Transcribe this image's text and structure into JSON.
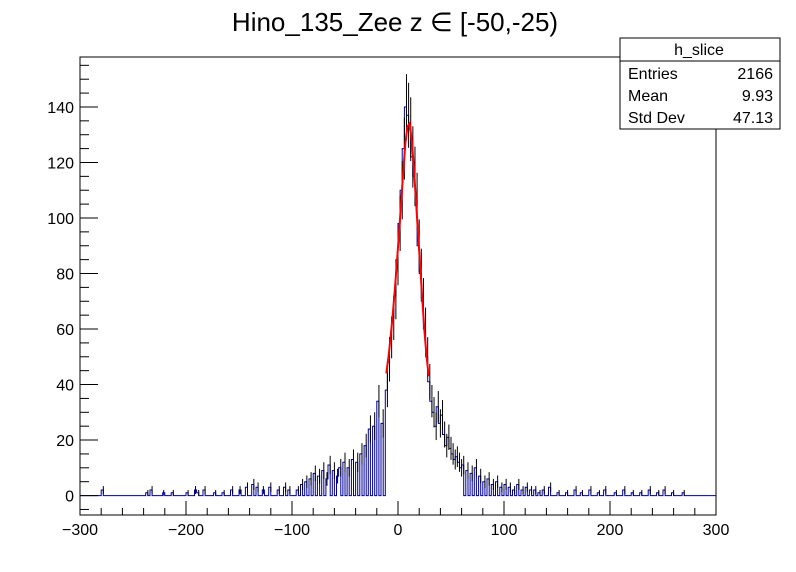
{
  "chart_data": {
    "type": "histogram",
    "title": "Hino_135_Zee z  ∈ [-50,-25)",
    "xlim": [
      -300,
      300
    ],
    "ylim": [
      -7,
      158
    ],
    "x_ticks": [
      -300,
      -200,
      -100,
      0,
      100,
      200,
      300
    ],
    "y_ticks": [
      0,
      20,
      40,
      60,
      80,
      100,
      120,
      140
    ],
    "grid": false,
    "bin_width": 2,
    "colors": {
      "histogram": "#000099",
      "fit": "#ff0000",
      "frame": "#000000"
    },
    "stats_box": {
      "title": "h_slice",
      "rows": [
        {
          "label": "Entries",
          "value": "2166"
        },
        {
          "label": "Mean",
          "value": "9.93"
        },
        {
          "label": "Std Dev",
          "value": "47.13"
        }
      ]
    },
    "histogram_points": [
      [
        -279,
        2
      ],
      [
        -237,
        1
      ],
      [
        -233,
        2
      ],
      [
        -222,
        1
      ],
      [
        -213,
        1
      ],
      [
        -199,
        1
      ],
      [
        -192,
        2
      ],
      [
        -189,
        1
      ],
      [
        -183,
        2
      ],
      [
        -173,
        1
      ],
      [
        -165,
        1
      ],
      [
        -157,
        2
      ],
      [
        -150,
        2
      ],
      [
        -143,
        3
      ],
      [
        -137,
        4
      ],
      [
        -133,
        3
      ],
      [
        -128,
        2
      ],
      [
        -121,
        3
      ],
      [
        -113,
        2
      ],
      [
        -107,
        3
      ],
      [
        -103,
        2
      ],
      [
        -95,
        2
      ],
      [
        -91,
        4
      ],
      [
        -87,
        5
      ],
      [
        -83,
        6
      ],
      [
        -79,
        8
      ],
      [
        -75,
        7
      ],
      [
        -71,
        9
      ],
      [
        -68,
        6
      ],
      [
        -65,
        11
      ],
      [
        -61,
        9
      ],
      [
        -58,
        7
      ],
      [
        -55,
        10
      ],
      [
        -51,
        12
      ],
      [
        -47,
        10
      ],
      [
        -43,
        13
      ],
      [
        -39,
        12
      ],
      [
        -35,
        15
      ],
      [
        -31,
        18
      ],
      [
        -27,
        24
      ],
      [
        -23,
        25
      ],
      [
        -19,
        34
      ],
      [
        -15,
        26
      ],
      [
        -11,
        38
      ],
      [
        -9,
        48
      ],
      [
        -7,
        57
      ],
      [
        -5,
        64
      ],
      [
        -3,
        72
      ],
      [
        -1,
        85
      ],
      [
        1,
        98
      ],
      [
        3,
        110
      ],
      [
        5,
        125
      ],
      [
        7,
        140
      ],
      [
        9,
        137
      ],
      [
        11,
        132
      ],
      [
        13,
        122
      ],
      [
        15,
        115
      ],
      [
        17,
        106
      ],
      [
        19,
        90
      ],
      [
        21,
        80
      ],
      [
        23,
        70
      ],
      [
        25,
        60
      ],
      [
        27,
        50
      ],
      [
        29,
        41
      ],
      [
        31,
        34
      ],
      [
        33,
        30
      ],
      [
        35,
        25
      ],
      [
        37,
        32
      ],
      [
        39,
        26
      ],
      [
        41,
        29
      ],
      [
        43,
        22
      ],
      [
        45,
        18
      ],
      [
        47,
        21
      ],
      [
        49,
        17
      ],
      [
        51,
        15
      ],
      [
        53,
        13
      ],
      [
        55,
        14
      ],
      [
        57,
        12
      ],
      [
        59,
        10
      ],
      [
        61,
        11
      ],
      [
        65,
        9
      ],
      [
        69,
        8
      ],
      [
        73,
        10
      ],
      [
        77,
        7
      ],
      [
        81,
        5
      ],
      [
        85,
        6
      ],
      [
        89,
        4
      ],
      [
        93,
        5
      ],
      [
        97,
        3
      ],
      [
        101,
        4
      ],
      [
        105,
        3
      ],
      [
        109,
        2
      ],
      [
        113,
        4
      ],
      [
        117,
        2
      ],
      [
        121,
        3
      ],
      [
        125,
        2
      ],
      [
        129,
        2
      ],
      [
        133,
        1
      ],
      [
        137,
        2
      ],
      [
        143,
        3
      ],
      [
        151,
        1
      ],
      [
        159,
        1
      ],
      [
        167,
        2
      ],
      [
        173,
        1
      ],
      [
        181,
        2
      ],
      [
        189,
        1
      ],
      [
        195,
        2
      ],
      [
        205,
        1
      ],
      [
        213,
        2
      ],
      [
        221,
        1
      ],
      [
        229,
        1
      ],
      [
        237,
        2
      ],
      [
        245,
        1
      ],
      [
        251,
        2
      ],
      [
        259,
        1
      ],
      [
        269,
        1
      ]
    ],
    "fit_points": [
      [
        -11,
        44
      ],
      [
        -9,
        50
      ],
      [
        -7,
        57
      ],
      [
        -5,
        65
      ],
      [
        -3,
        74
      ],
      [
        -1,
        84
      ],
      [
        1,
        95
      ],
      [
        3,
        106
      ],
      [
        5,
        117
      ],
      [
        7,
        127
      ],
      [
        9,
        133
      ],
      [
        11,
        134
      ],
      [
        13,
        128
      ],
      [
        15,
        118
      ],
      [
        17,
        106
      ],
      [
        19,
        94
      ],
      [
        21,
        82
      ],
      [
        23,
        70
      ],
      [
        25,
        59
      ],
      [
        27,
        50
      ],
      [
        29,
        43
      ]
    ]
  }
}
